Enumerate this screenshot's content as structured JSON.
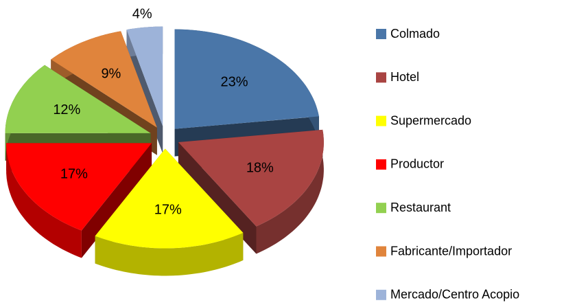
{
  "chart_data": {
    "type": "pie",
    "categories": [
      "Colmado",
      "Hotel",
      "Supermercado",
      "Productor",
      "Restaurant",
      "Fabricante/Importador",
      "Mercado/Centro Acopio"
    ],
    "values": [
      23,
      18,
      17,
      17,
      12,
      9,
      4
    ],
    "value_labels": [
      "23%",
      "18%",
      "17%",
      "17%",
      "12%",
      "9%",
      "4%"
    ],
    "colors": [
      "#4a76a8",
      "#a94442",
      "#ffff00",
      "#ff0000",
      "#92d050",
      "#e0843c",
      "#9db3d9"
    ],
    "legend": "right"
  }
}
